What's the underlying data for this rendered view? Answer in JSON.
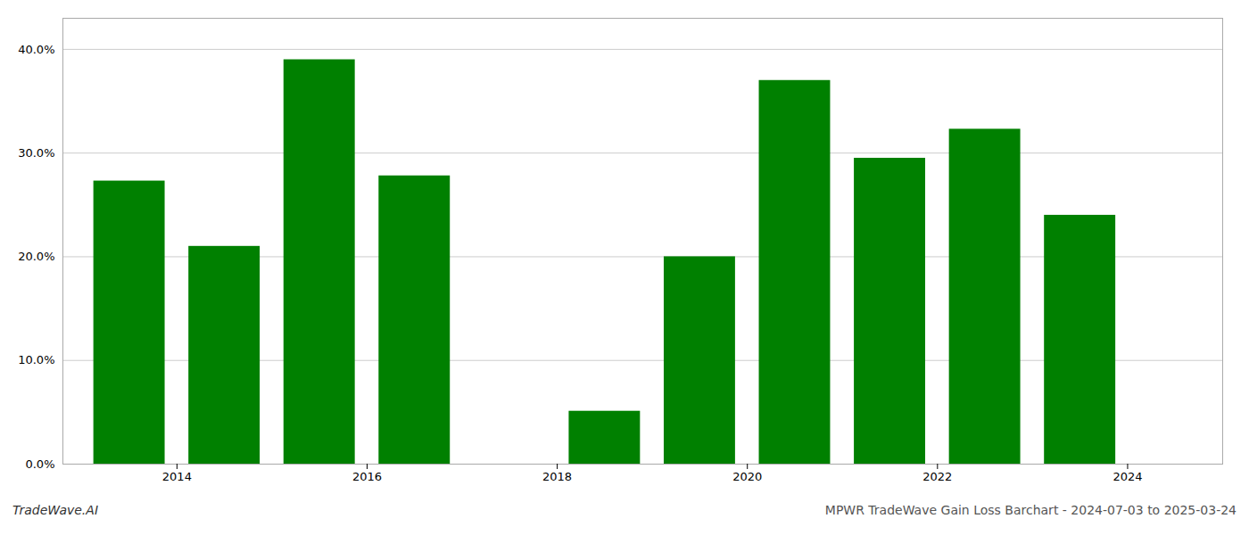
{
  "chart_data": {
    "type": "bar",
    "x": [
      2013,
      2014,
      2015,
      2016,
      2017,
      2018,
      2019,
      2020,
      2021,
      2022,
      2023
    ],
    "values": [
      0.273,
      0.21,
      0.39,
      0.278,
      0.0,
      0.051,
      0.2,
      0.37,
      0.295,
      0.323,
      0.24
    ],
    "color": "#008000",
    "xlim": [
      2012.3,
      2024.5
    ],
    "xticks": [
      {
        "value": 2013.5,
        "label": "2014"
      },
      {
        "value": 2015.5,
        "label": "2016"
      },
      {
        "value": 2017.5,
        "label": "2018"
      },
      {
        "value": 2019.5,
        "label": "2020"
      },
      {
        "value": 2021.5,
        "label": "2022"
      },
      {
        "value": 2023.5,
        "label": "2024"
      }
    ],
    "ylim": [
      0,
      0.43
    ],
    "yticks": [
      {
        "value": 0.0,
        "label": "0.0%"
      },
      {
        "value": 0.1,
        "label": "10.0%"
      },
      {
        "value": 0.2,
        "label": "20.0%"
      },
      {
        "value": 0.3,
        "label": "30.0%"
      },
      {
        "value": 0.4,
        "label": "40.0%"
      }
    ],
    "grid": true,
    "annotations": [
      "TradeWave.AI",
      "MPWR TradeWave Gain Loss Barchart - 2024-07-03 to 2025-03-24"
    ]
  }
}
